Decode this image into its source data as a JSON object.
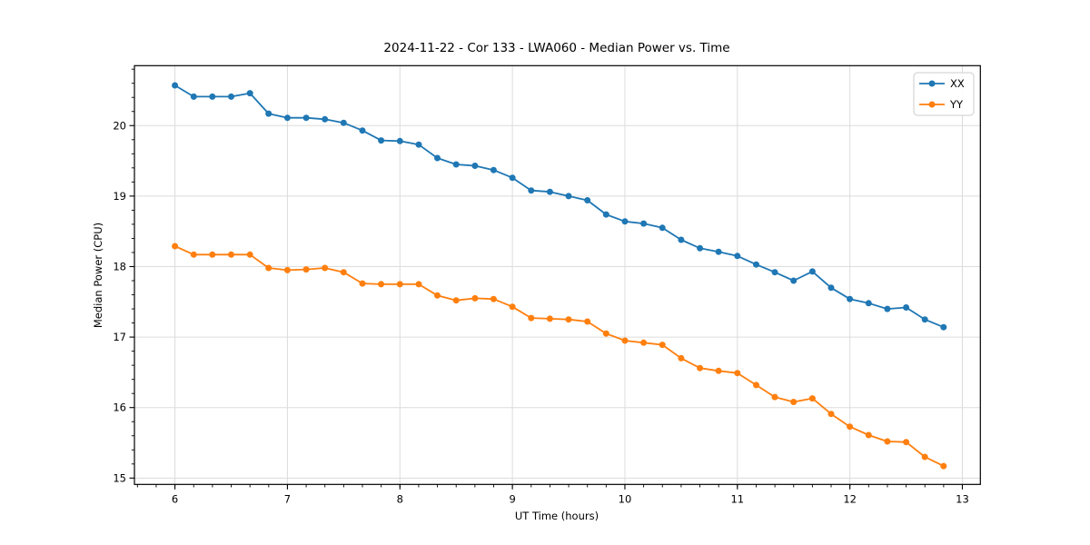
{
  "chart_data": {
    "type": "line",
    "title": "2024-11-22 - Cor 133 - LWA060 - Median Power vs. Time",
    "xlabel": "UT Time (hours)",
    "ylabel": "Median Power (CPU)",
    "xlim": [
      5.64,
      13.16
    ],
    "ylim": [
      14.91,
      20.85
    ],
    "x_ticks": [
      6,
      7,
      8,
      9,
      10,
      11,
      12,
      13
    ],
    "y_ticks": [
      15,
      16,
      17,
      18,
      19,
      20
    ],
    "x_minor_step": 0.16667,
    "y_minor_step": 0.2,
    "grid": true,
    "grid_color": "#dcdcdc",
    "legend": {
      "position": "upper-right",
      "entries": [
        "XX",
        "YY"
      ]
    },
    "x": [
      6.0,
      6.167,
      6.333,
      6.5,
      6.667,
      6.833,
      7.0,
      7.167,
      7.333,
      7.5,
      7.667,
      7.833,
      8.0,
      8.167,
      8.333,
      8.5,
      8.667,
      8.833,
      9.0,
      9.167,
      9.333,
      9.5,
      9.667,
      9.833,
      10.0,
      10.167,
      10.333,
      10.5,
      10.667,
      10.833,
      11.0,
      11.167,
      11.333,
      11.5,
      11.667,
      11.833,
      12.0,
      12.167,
      12.333,
      12.5,
      12.667,
      12.833
    ],
    "series": [
      {
        "name": "XX",
        "color": "#1f77b4",
        "values": [
          20.57,
          20.41,
          20.41,
          20.41,
          20.46,
          20.17,
          20.11,
          20.11,
          20.09,
          20.04,
          19.93,
          19.79,
          19.78,
          19.73,
          19.54,
          19.45,
          19.43,
          19.37,
          19.26,
          19.08,
          19.06,
          19.0,
          18.94,
          18.74,
          18.64,
          18.61,
          18.55,
          18.38,
          18.26,
          18.21,
          18.15,
          18.03,
          17.92,
          17.8,
          17.93,
          17.7,
          17.54,
          17.48,
          17.4,
          17.42,
          17.25,
          17.14
        ]
      },
      {
        "name": "YY",
        "color": "#ff7f0e",
        "values": [
          18.29,
          18.17,
          18.17,
          18.17,
          18.17,
          17.98,
          17.95,
          17.96,
          17.98,
          17.92,
          17.76,
          17.75,
          17.75,
          17.75,
          17.59,
          17.52,
          17.55,
          17.54,
          17.43,
          17.27,
          17.26,
          17.25,
          17.22,
          17.05,
          16.95,
          16.92,
          16.89,
          16.7,
          16.56,
          16.52,
          16.49,
          16.32,
          16.15,
          16.08,
          16.13,
          15.91,
          15.73,
          15.61,
          15.52,
          15.51,
          15.3,
          15.17
        ]
      }
    ]
  }
}
